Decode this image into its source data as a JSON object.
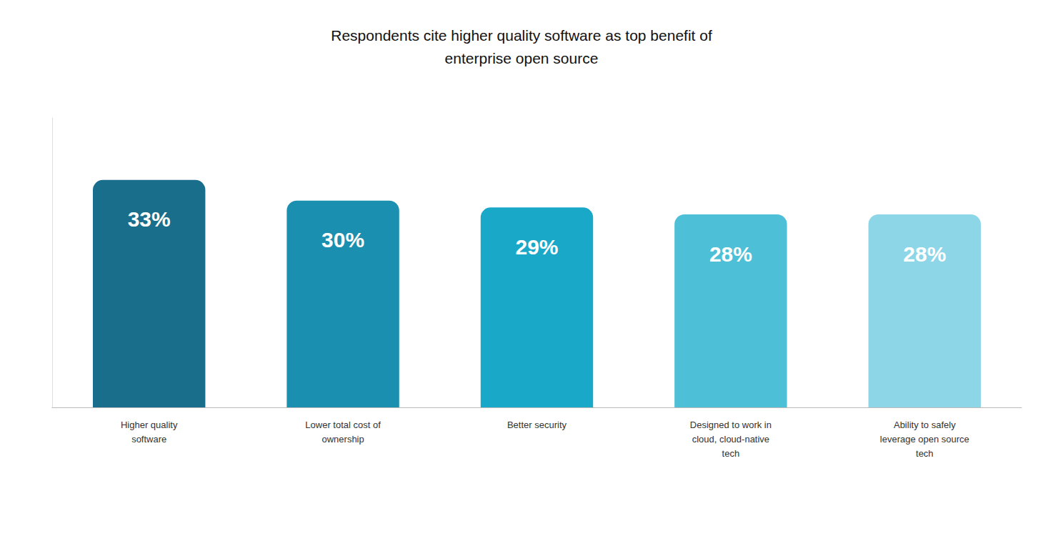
{
  "chart_data": {
    "type": "bar",
    "title": "Respondents cite higher quality software as top benefit of\nenterprise open source",
    "categories": [
      "Higher quality\nsoftware",
      "Lower total cost of\nownership",
      "Better security",
      "Designed to work in\ncloud, cloud-native\ntech",
      "Ability to safely\nleverage open source\ntech"
    ],
    "values": [
      33,
      30,
      29,
      28,
      28
    ],
    "value_labels": [
      "33%",
      "30%",
      "29%",
      "28%",
      "28%"
    ],
    "colors": [
      "#196e8c",
      "#1b8fb0",
      "#1aa8c8",
      "#4dbfd6",
      "#8dd6e8"
    ],
    "ylim": [
      0,
      42
    ],
    "grid": false,
    "data_labels": true,
    "tick_labels": "x"
  }
}
